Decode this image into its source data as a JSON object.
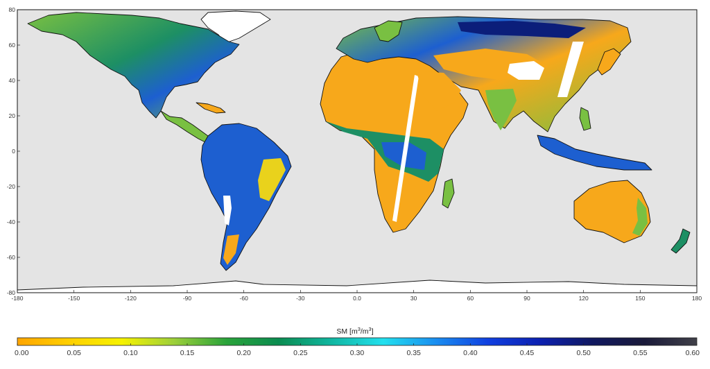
{
  "map": {
    "ocean_color": "#e4e4e4",
    "land_colors": {
      "dry": "#f7a81b",
      "semi_dry": "#e9d21c",
      "moderate": "#79c042",
      "wet": "#14a35a",
      "very_wet": "#1d5fd0",
      "saturated": "#0b1e7a",
      "no_data": "#ffffff",
      "ice": "#ffffff"
    },
    "x_axis": {
      "ticks": [
        "-180",
        "-150",
        "-120",
        "-90",
        "-60",
        "-30",
        "0.0",
        "30",
        "60",
        "90",
        "120",
        "150",
        "180"
      ]
    },
    "y_axis": {
      "ticks": [
        "80",
        "60",
        "40",
        "20",
        "0",
        "-20",
        "-40",
        "-60",
        "-80"
      ]
    }
  },
  "colorbar": {
    "title_prefix": "SM [m",
    "title_sup1": "3",
    "title_mid": "/m",
    "title_sup2": "3",
    "title_suffix": "]",
    "ticks": [
      "0.00",
      "0.05",
      "0.10",
      "0.15",
      "0.20",
      "0.25",
      "0.30",
      "0.35",
      "0.40",
      "0.45",
      "0.50",
      "0.55",
      "0.60"
    ],
    "range": [
      0.0,
      0.6
    ],
    "color_stops": [
      "#ffa500",
      "#ffd000",
      "#f6f200",
      "#9ccf3a",
      "#2aa33a",
      "#0a8c50",
      "#10b6a0",
      "#22e0ee",
      "#1a8ef0",
      "#1040e0",
      "#0c20b0",
      "#101860",
      "#1a1a3a",
      "#404048"
    ]
  }
}
